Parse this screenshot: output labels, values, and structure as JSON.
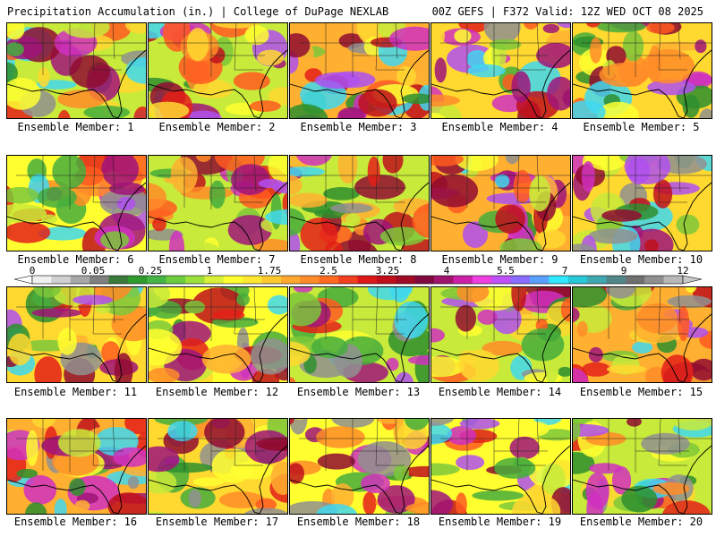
{
  "header": {
    "left": "Precipitation Accumulation (in.) | College of DuPage NEXLAB",
    "right": "00Z GEFS | F372 Valid: 12Z WED OCT 08 2025"
  },
  "panels": [
    {
      "label": "Ensemble Member: 1"
    },
    {
      "label": "Ensemble Member: 2"
    },
    {
      "label": "Ensemble Member: 3"
    },
    {
      "label": "Ensemble Member: 4"
    },
    {
      "label": "Ensemble Member: 5"
    },
    {
      "label": "Ensemble Member: 6"
    },
    {
      "label": "Ensemble Member: 7"
    },
    {
      "label": "Ensemble Member: 8"
    },
    {
      "label": "Ensemble Member: 9"
    },
    {
      "label": "Ensemble Member: 10"
    },
    {
      "label": "Ensemble Member: 11"
    },
    {
      "label": "Ensemble Member: 12"
    },
    {
      "label": "Ensemble Member: 13"
    },
    {
      "label": "Ensemble Member: 14"
    },
    {
      "label": "Ensemble Member: 15"
    },
    {
      "label": "Ensemble Member: 16"
    },
    {
      "label": "Ensemble Member: 17"
    },
    {
      "label": "Ensemble Member: 18"
    },
    {
      "label": "Ensemble Member: 19"
    },
    {
      "label": "Ensemble Member: 20"
    }
  ],
  "colorbar": {
    "tick_labels": [
      "0",
      "0.05",
      "0.25",
      "1",
      "1.75",
      "2.5",
      "3.25",
      "4",
      "5.5",
      "7",
      "9",
      "12"
    ],
    "colors": [
      "#f0f0f0",
      "#d0d0d0",
      "#a8a8a8",
      "#808080",
      "#3a7a3a",
      "#2e9b2e",
      "#46b446",
      "#6ccc3c",
      "#9ee03a",
      "#d8f03a",
      "#ffff30",
      "#ffe830",
      "#ffc830",
      "#ffa830",
      "#ff8c28",
      "#ff6a20",
      "#f04020",
      "#dd1818",
      "#c00e1a",
      "#a00a24",
      "#800a40",
      "#a01470",
      "#cc20a8",
      "#ee40e0",
      "#c050f8",
      "#8a6cff",
      "#5aa0ff",
      "#30e8ff",
      "#28c8d8",
      "#40a8b0",
      "#50888a",
      "#707070",
      "#909090",
      "#b8b8b8"
    ]
  }
}
